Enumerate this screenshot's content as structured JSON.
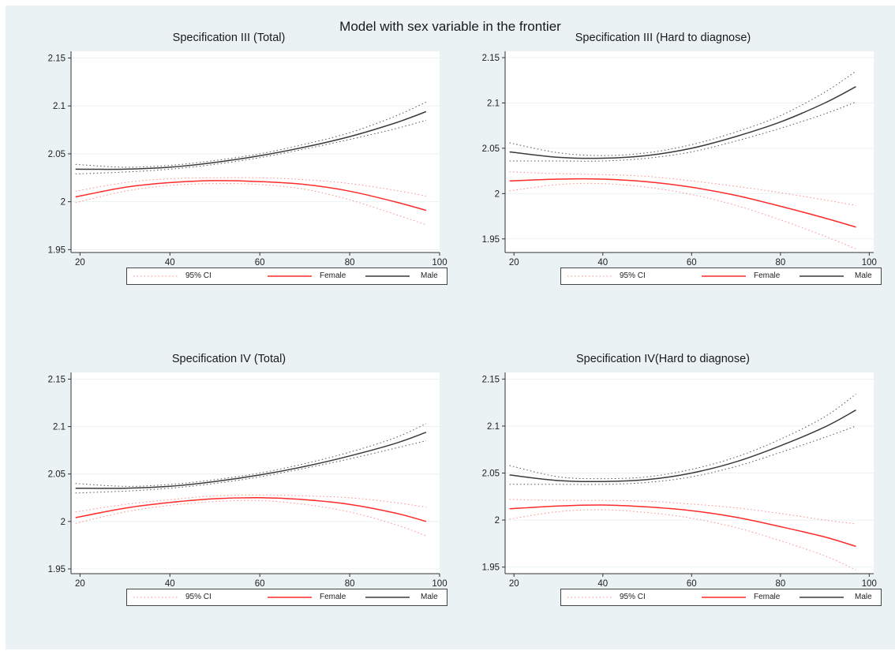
{
  "figure": {
    "title": "Model with sex variable in the frontier",
    "background": "#eaf2f3"
  },
  "legend": {
    "ci_label": "95% CI",
    "female_label": "Female",
    "male_label": "Male"
  },
  "colors": {
    "female": "#ff2a2a",
    "female_ci": "#ff8a8a",
    "male": "#3a3a3a",
    "male_ci": "#555555"
  },
  "chart_data": [
    {
      "type": "line",
      "title": "Specification III (Total)",
      "xlim": [
        18,
        100
      ],
      "ylim": [
        1.947,
        2.157
      ],
      "xticks": [
        20,
        40,
        60,
        80,
        100
      ],
      "yticks": [
        1.95,
        2,
        2.05,
        2.1,
        2.15
      ],
      "ytick_labels": [
        "1.95",
        "2",
        "2.05",
        "2.1",
        "2.15"
      ],
      "grid": true,
      "legend_position": "bottom",
      "series": [
        {
          "name": "Male",
          "x": [
            19,
            30,
            40,
            50,
            60,
            70,
            80,
            90,
            97
          ],
          "y": [
            2.034,
            2.034,
            2.036,
            2.041,
            2.048,
            2.057,
            2.068,
            2.082,
            2.094
          ]
        },
        {
          "name": "Female",
          "x": [
            19,
            30,
            40,
            50,
            60,
            70,
            80,
            90,
            97
          ],
          "y": [
            2.005,
            2.015,
            2.02,
            2.022,
            2.021,
            2.018,
            2.011,
            2.0,
            1.991
          ]
        }
      ],
      "ci": [
        {
          "group": "Male",
          "x": [
            19,
            30,
            40,
            50,
            60,
            70,
            80,
            90,
            97
          ],
          "lower": [
            2.029,
            2.031,
            2.034,
            2.039,
            2.046,
            2.055,
            2.065,
            2.076,
            2.085
          ],
          "upper": [
            2.039,
            2.036,
            2.038,
            2.043,
            2.05,
            2.06,
            2.072,
            2.089,
            2.104
          ]
        },
        {
          "group": "Female",
          "x": [
            19,
            30,
            40,
            50,
            60,
            70,
            80,
            90,
            97
          ],
          "lower": [
            1.999,
            2.011,
            2.017,
            2.019,
            2.018,
            2.013,
            2.002,
            1.987,
            1.976
          ],
          "upper": [
            2.011,
            2.02,
            2.024,
            2.025,
            2.025,
            2.023,
            2.019,
            2.012,
            2.006
          ]
        }
      ]
    },
    {
      "type": "line",
      "title": "Specification III (Hard to diagnose)",
      "xlim": [
        18,
        101
      ],
      "ylim": [
        1.935,
        2.157
      ],
      "xticks": [
        20,
        40,
        60,
        80,
        100
      ],
      "yticks": [
        1.95,
        2,
        2.05,
        2.1,
        2.15
      ],
      "ytick_labels": [
        "1.95",
        "2",
        "2.05",
        "2.1",
        "2.15"
      ],
      "grid": true,
      "legend_position": "bottom",
      "series": [
        {
          "name": "Male",
          "x": [
            19,
            30,
            40,
            50,
            60,
            70,
            80,
            90,
            97
          ],
          "y": [
            2.046,
            2.04,
            2.039,
            2.042,
            2.05,
            2.063,
            2.079,
            2.1,
            2.118
          ]
        },
        {
          "name": "Female",
          "x": [
            19,
            30,
            40,
            50,
            60,
            70,
            80,
            90,
            97
          ],
          "y": [
            2.014,
            2.016,
            2.016,
            2.013,
            2.007,
            1.998,
            1.986,
            1.973,
            1.963
          ]
        }
      ],
      "ci": [
        {
          "group": "Male",
          "x": [
            19,
            30,
            40,
            50,
            60,
            70,
            80,
            90,
            97
          ],
          "lower": [
            2.036,
            2.036,
            2.036,
            2.039,
            2.046,
            2.058,
            2.072,
            2.088,
            2.101
          ]
        },
        {
          "group": "Male",
          "x": [
            19,
            30,
            40,
            50,
            60,
            70,
            80,
            90,
            97
          ],
          "upper": [
            2.056,
            2.045,
            2.042,
            2.045,
            2.054,
            2.068,
            2.086,
            2.112,
            2.135
          ]
        },
        {
          "group": "Female",
          "x": [
            19,
            30,
            40,
            50,
            60,
            70,
            80,
            90,
            97
          ],
          "lower": [
            2.003,
            2.01,
            2.011,
            2.007,
            1.999,
            1.987,
            1.971,
            1.953,
            1.939
          ],
          "upper": [
            2.024,
            2.022,
            2.021,
            2.019,
            2.014,
            2.008,
            2.001,
            1.993,
            1.987
          ]
        }
      ]
    },
    {
      "type": "line",
      "title": "Specification IV (Total)",
      "xlim": [
        18,
        100
      ],
      "ylim": [
        1.945,
        2.157
      ],
      "xticks": [
        20,
        40,
        60,
        80,
        100
      ],
      "yticks": [
        1.95,
        2,
        2.05,
        2.1,
        2.15
      ],
      "ytick_labels": [
        "1.95",
        "2",
        "2.05",
        "2.1",
        "2.15"
      ],
      "grid": true,
      "legend_position": "bottom",
      "series": [
        {
          "name": "Male",
          "x": [
            19,
            30,
            40,
            50,
            60,
            70,
            80,
            90,
            97
          ],
          "y": [
            2.035,
            2.035,
            2.037,
            2.042,
            2.049,
            2.058,
            2.069,
            2.082,
            2.094
          ]
        },
        {
          "name": "Female",
          "x": [
            19,
            30,
            40,
            50,
            60,
            70,
            80,
            90,
            97
          ],
          "y": [
            2.004,
            2.014,
            2.02,
            2.024,
            2.025,
            2.023,
            2.018,
            2.009,
            2.0
          ]
        }
      ],
      "ci": [
        {
          "group": "Male",
          "x": [
            19,
            30,
            40,
            50,
            60,
            70,
            80,
            90,
            97
          ],
          "lower": [
            2.03,
            2.032,
            2.035,
            2.04,
            2.047,
            2.056,
            2.066,
            2.077,
            2.085
          ],
          "upper": [
            2.04,
            2.037,
            2.039,
            2.044,
            2.051,
            2.061,
            2.073,
            2.088,
            2.103
          ]
        },
        {
          "group": "Female",
          "x": [
            19,
            30,
            40,
            50,
            60,
            70,
            80,
            90,
            97
          ],
          "lower": [
            1.998,
            2.01,
            2.017,
            2.021,
            2.022,
            2.018,
            2.01,
            1.997,
            1.985
          ],
          "upper": [
            2.01,
            2.018,
            2.023,
            2.027,
            2.028,
            2.027,
            2.025,
            2.02,
            2.015
          ]
        }
      ]
    },
    {
      "type": "line",
      "title": "Specification IV(Hard to diagnose)",
      "xlim": [
        18,
        101
      ],
      "ylim": [
        1.943,
        2.157
      ],
      "xticks": [
        20,
        40,
        60,
        80,
        100
      ],
      "yticks": [
        1.95,
        2,
        2.05,
        2.1,
        2.15
      ],
      "ytick_labels": [
        "1.95",
        "2",
        "2.05",
        "2.1",
        "2.15"
      ],
      "grid": true,
      "legend_position": "bottom",
      "series": [
        {
          "name": "Male",
          "x": [
            19,
            30,
            40,
            50,
            60,
            70,
            80,
            90,
            97
          ],
          "y": [
            2.048,
            2.042,
            2.041,
            2.043,
            2.05,
            2.062,
            2.079,
            2.099,
            2.117
          ]
        },
        {
          "name": "Female",
          "x": [
            19,
            30,
            40,
            50,
            60,
            70,
            80,
            90,
            97
          ],
          "y": [
            2.012,
            2.015,
            2.016,
            2.014,
            2.01,
            2.003,
            1.993,
            1.982,
            1.972
          ]
        }
      ],
      "ci": [
        {
          "group": "Male",
          "x": [
            19,
            30,
            40,
            50,
            60,
            70,
            80,
            90,
            97
          ],
          "lower": [
            2.038,
            2.038,
            2.038,
            2.04,
            2.046,
            2.057,
            2.072,
            2.088,
            2.1
          ],
          "upper": [
            2.058,
            2.046,
            2.044,
            2.046,
            2.054,
            2.067,
            2.086,
            2.11,
            2.134
          ]
        },
        {
          "group": "Female",
          "x": [
            19,
            30,
            40,
            50,
            60,
            70,
            80,
            90,
            97
          ],
          "lower": [
            2.001,
            2.009,
            2.011,
            2.008,
            2.002,
            1.992,
            1.978,
            1.962,
            1.947
          ],
          "upper": [
            2.022,
            2.021,
            2.021,
            2.02,
            2.017,
            2.013,
            2.007,
            2.0,
            1.996
          ]
        }
      ]
    }
  ]
}
